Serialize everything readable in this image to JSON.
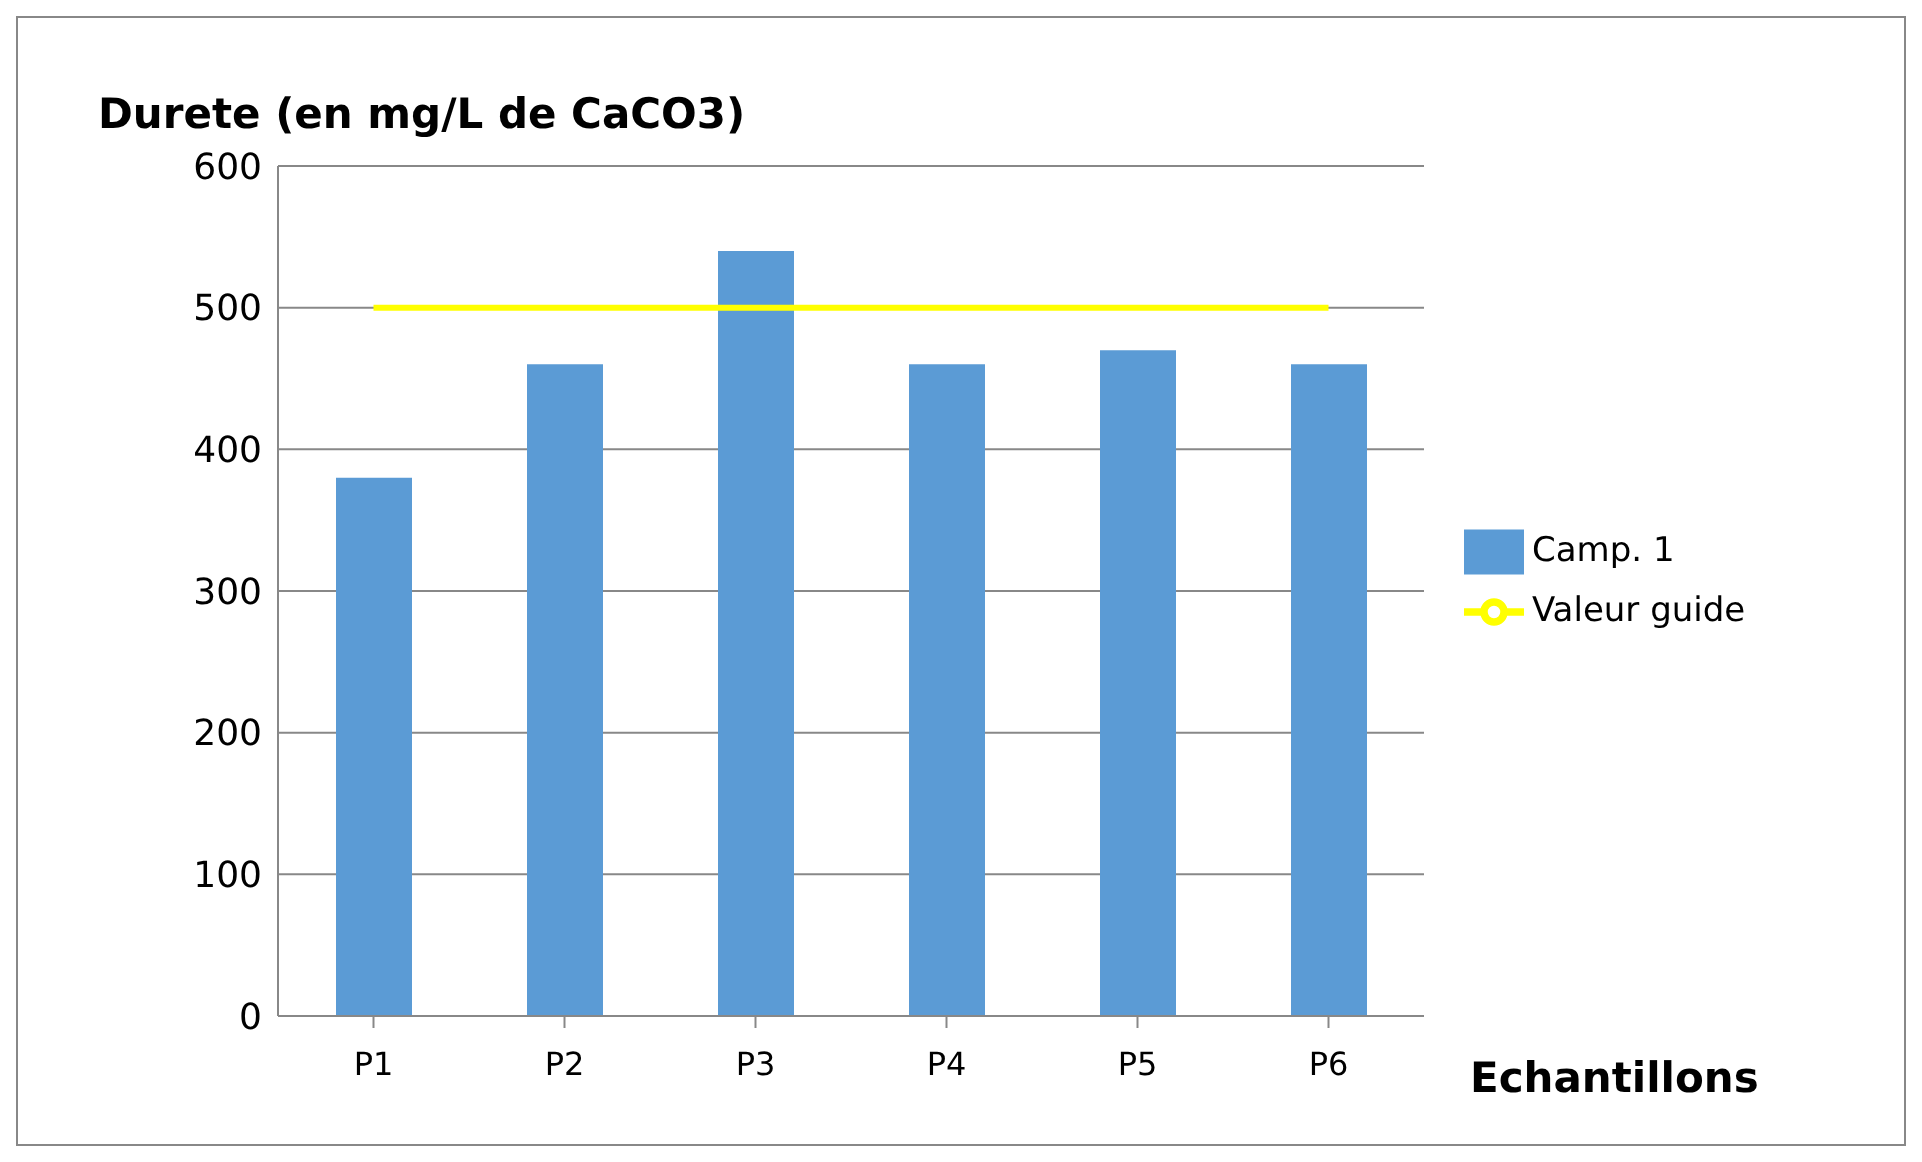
{
  "chart_data": {
    "type": "bar",
    "ylabel": "Durete (en mg/L de CaCO3)",
    "xlabel": "Echantillons",
    "categories": [
      "P1",
      "P2",
      "P3",
      "P4",
      "P5",
      "P6"
    ],
    "series": [
      {
        "name": "Camp. 1",
        "color": "#5b9bd5",
        "values": [
          380,
          460,
          540,
          460,
          470,
          460
        ]
      },
      {
        "name": "Valeur guide",
        "type": "line",
        "color": "#ffff00",
        "values": [
          500,
          500,
          500,
          500,
          500,
          500
        ]
      }
    ],
    "ylim": [
      0,
      600
    ],
    "yticks": [
      0,
      100,
      200,
      300,
      400,
      500,
      600
    ],
    "grid": "y",
    "legend": "right",
    "marker": "none"
  }
}
